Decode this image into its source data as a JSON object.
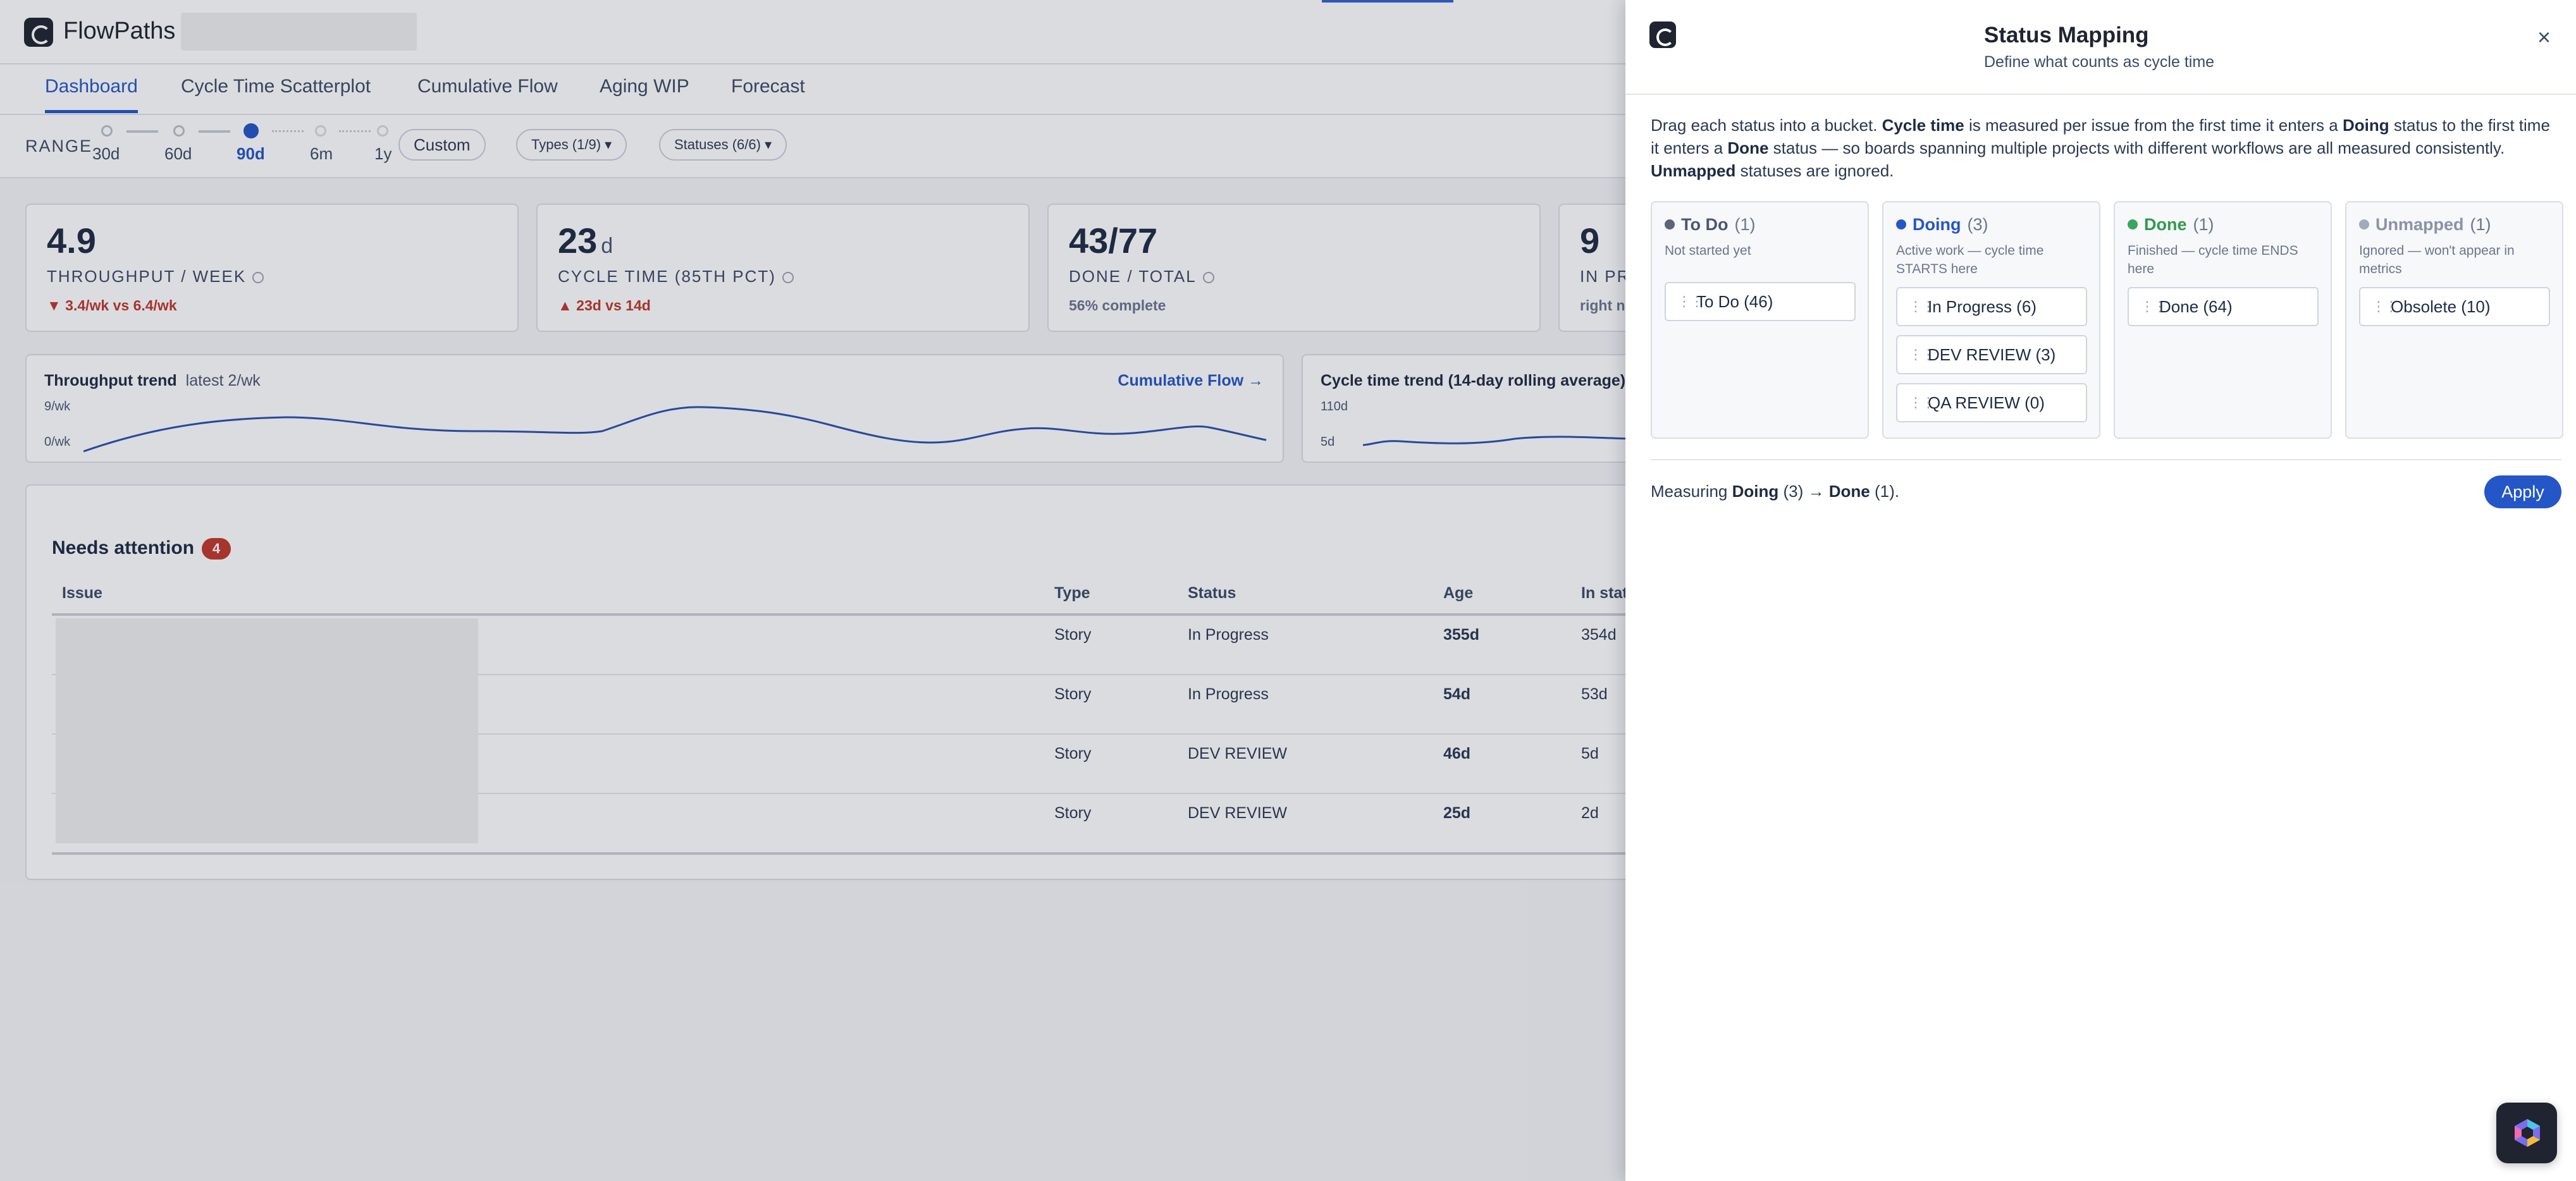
{
  "app": {
    "brand": "FlowPaths",
    "tabs": [
      {
        "label": "Dashboard",
        "active": true
      },
      {
        "label": "Cycle Time Scatterplot"
      },
      {
        "label": "Cumulative Flow"
      },
      {
        "label": "Aging WIP"
      },
      {
        "label": "Forecast"
      }
    ],
    "range": {
      "label": "RANGE",
      "stops": [
        "30d",
        "60d",
        "90d",
        "6m",
        "1y"
      ],
      "selected": "90d",
      "custom_label": "Custom"
    },
    "filters": {
      "types": "Types (1/9) ▾",
      "statuses": "Statuses (6/6) ▾"
    },
    "metrics": [
      {
        "value": "4.9",
        "unit": "",
        "label": "THROUGHPUT / WEEK",
        "sub": "▼ 3.4/wk vs 6.4/wk",
        "sub_tone": "red"
      },
      {
        "value": "23",
        "unit": "d",
        "label": "CYCLE TIME (85TH PCT)",
        "sub": "▲ 23d vs 14d",
        "sub_tone": "red"
      },
      {
        "value": "43/77",
        "unit": "",
        "label": "DONE / TOTAL",
        "sub": "56% complete",
        "sub_tone": "grey"
      },
      {
        "value": "9",
        "unit": "",
        "label": "IN PRO",
        "sub": "right n",
        "sub_tone": "grey"
      }
    ],
    "throughput_trend": {
      "title": "Throughput trend",
      "subtitle": "latest 2/wk",
      "link": "Cumulative Flow →",
      "y_max": "9/wk",
      "y_min": "0/wk"
    },
    "cycle_trend": {
      "title": "Cycle time trend (14-day rolling average)",
      "y_max": "110d",
      "y_min": "5d"
    },
    "attention": {
      "title": "Needs attention",
      "count": "4",
      "columns": [
        "Issue",
        "Type",
        "Status",
        "Age",
        "In stat"
      ],
      "rows": [
        {
          "type": "Story",
          "status": "In Progress",
          "age": "355d",
          "in_status": "354d"
        },
        {
          "type": "Story",
          "status": "In Progress",
          "age": "54d",
          "in_status": "53d"
        },
        {
          "type": "Story",
          "status": "DEV REVIEW",
          "age": "46d",
          "in_status": "5d"
        },
        {
          "type": "Story",
          "status": "DEV REVIEW",
          "age": "25d",
          "in_status": "2d"
        }
      ]
    }
  },
  "panel": {
    "title": "Status Mapping",
    "subtitle": "Define what counts as cycle time",
    "close_label": "×",
    "description": {
      "p1": "Drag each status into a bucket. ",
      "b1": "Cycle time",
      "p2": " is measured per issue from the first time it enters a ",
      "b2": "Doing",
      "p3": " status to the first time it enters a ",
      "b3": "Done",
      "p4": " status — so boards spanning multiple projects with different workflows are all measured consistently. ",
      "b4": "Unmapped",
      "p5": " statuses are ignored."
    },
    "buckets": [
      {
        "name": "To Do",
        "count": "(1)",
        "color": "#5b6478",
        "desc": "Not started yet",
        "chips": [
          "To Do (46)"
        ]
      },
      {
        "name": "Doing",
        "count": "(3)",
        "color": "#2456c7",
        "desc": "Active work — cycle time STARTS here",
        "chips": [
          "In Progress (6)",
          "DEV REVIEW (3)",
          "QA REVIEW (0)"
        ]
      },
      {
        "name": "Done",
        "count": "(1)",
        "color": "#3aa55d",
        "desc": "Finished — cycle time ENDS here",
        "chips": [
          "Done (64)"
        ]
      },
      {
        "name": "Unmapped",
        "count": "(1)",
        "color": "#a3aab8",
        "desc": "Ignored — won't appear in metrics",
        "chips": [
          "Obsolete (10)"
        ]
      }
    ],
    "measuring": {
      "prefix": "Measuring ",
      "from": "Doing",
      "from_count": " (3) → ",
      "to": "Done",
      "to_count": " (1)."
    },
    "apply_label": "Apply"
  }
}
